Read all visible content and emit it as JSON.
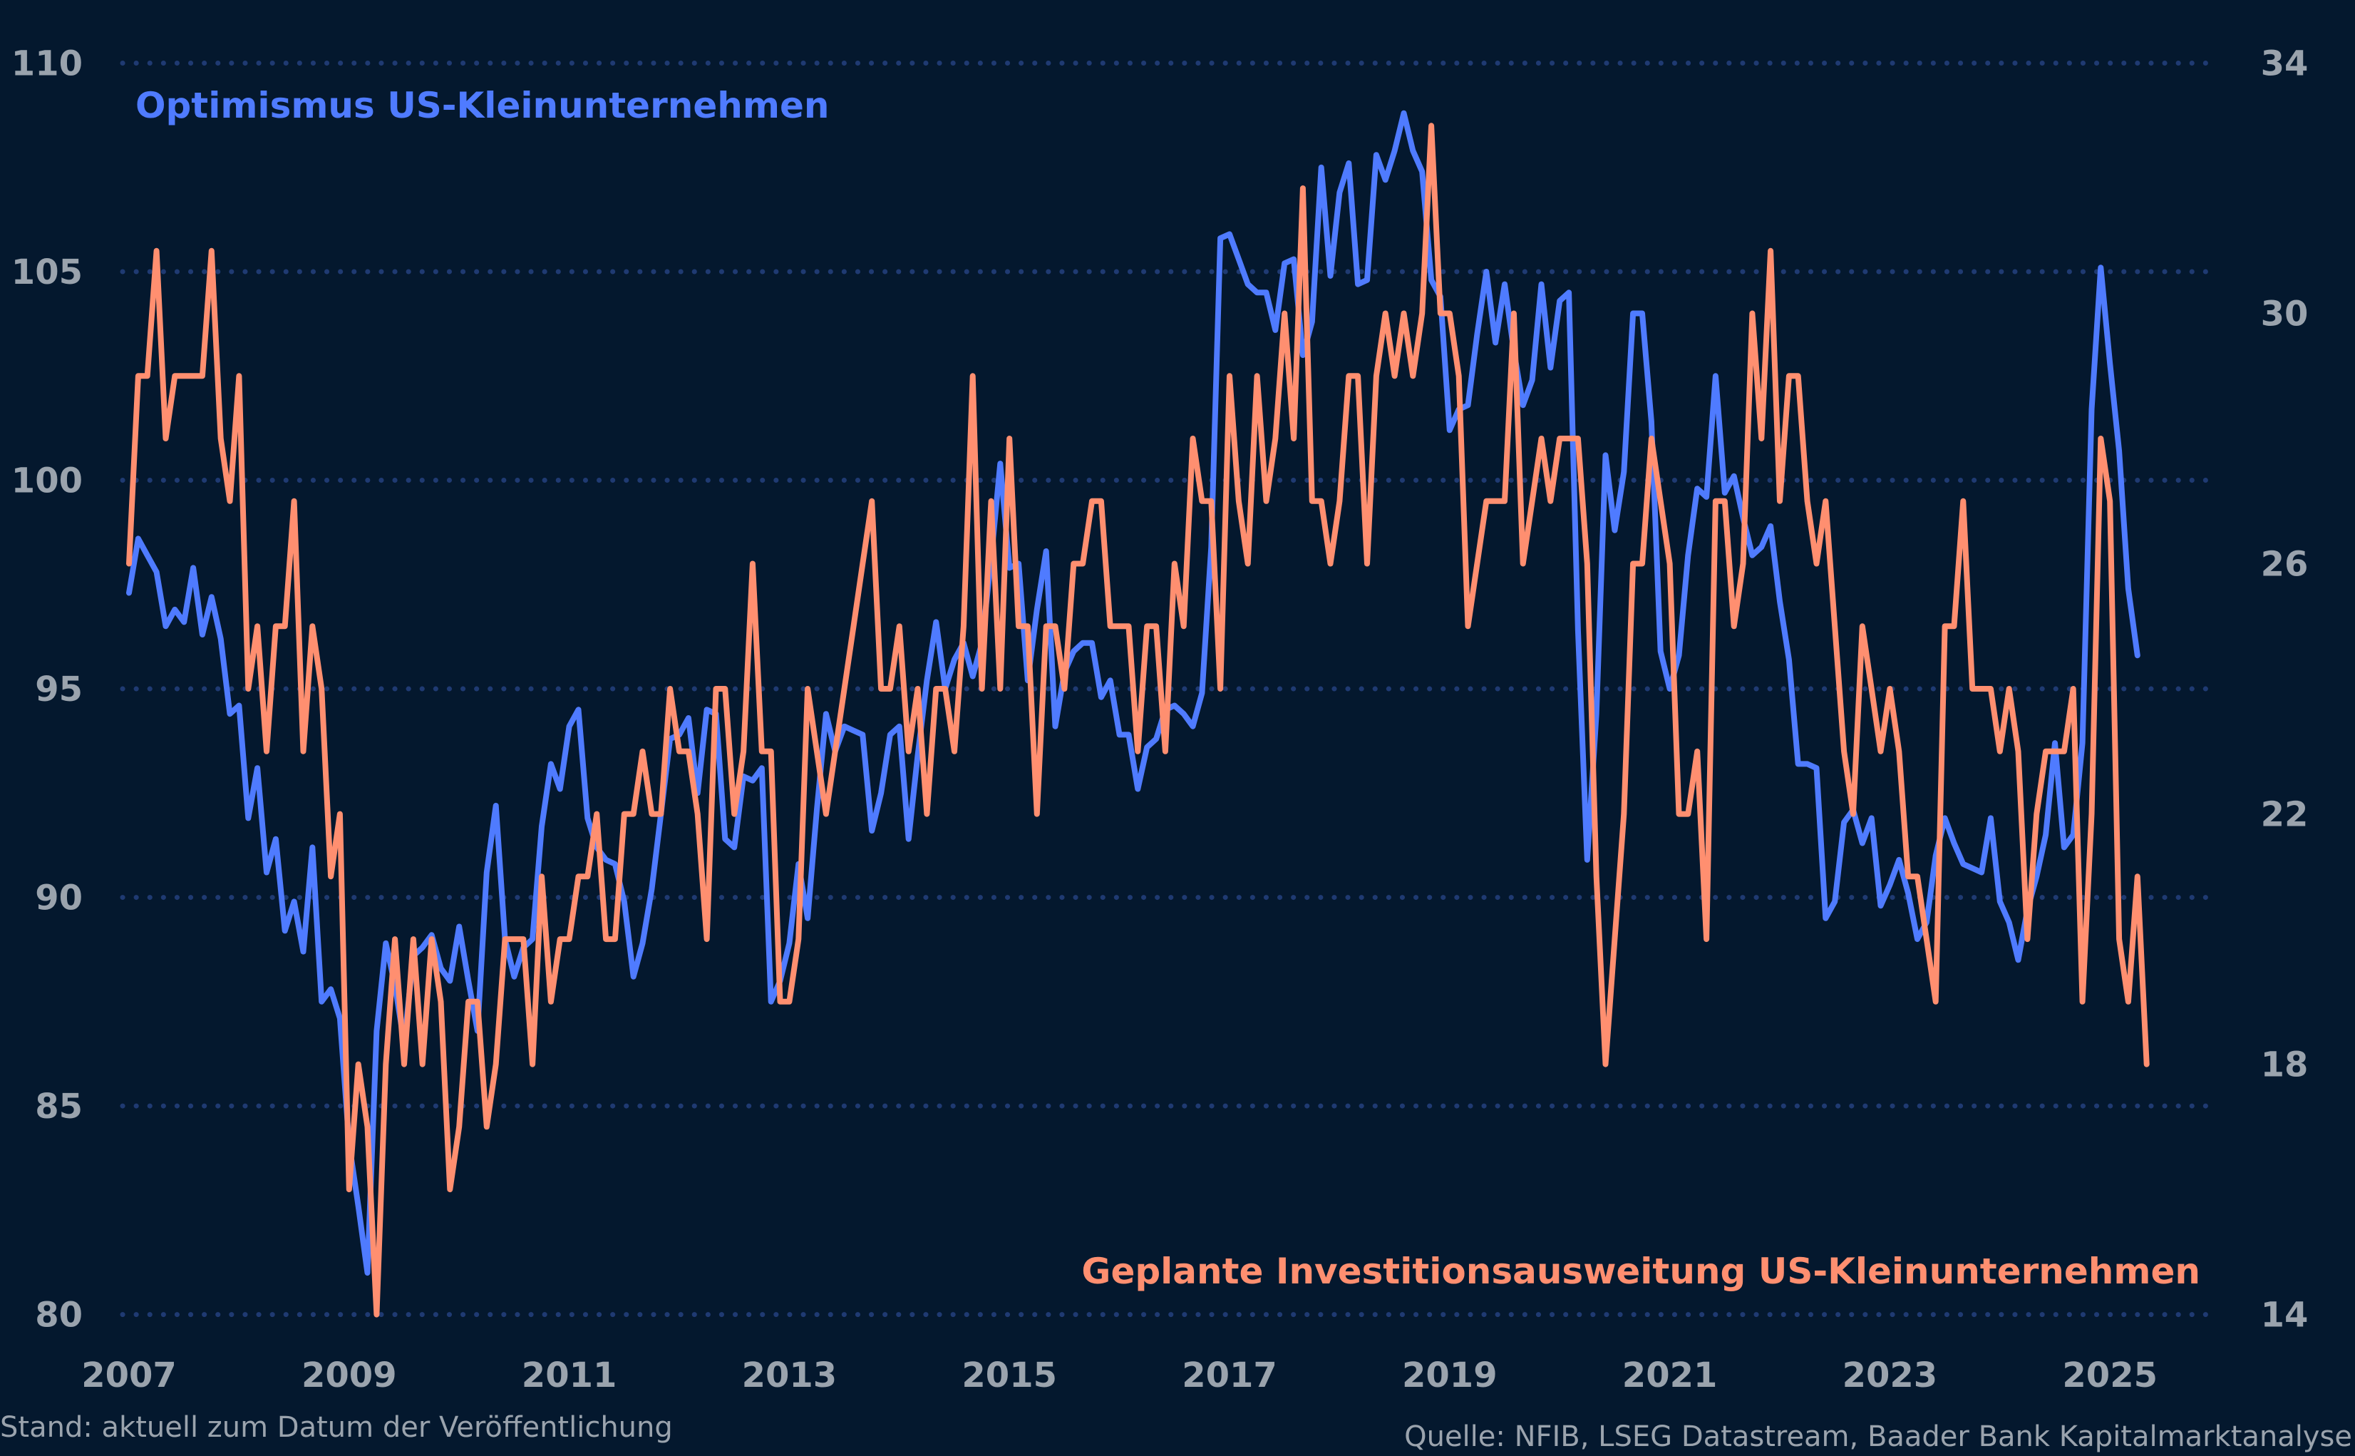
{
  "chart_data": {
    "type": "line",
    "title": "",
    "x_start": "2007-01",
    "x_frequency": "monthly",
    "x_ticks": [
      "2007",
      "2009",
      "2011",
      "2013",
      "2015",
      "2017",
      "2019",
      "2021",
      "2023",
      "2025"
    ],
    "y_left": {
      "range": [
        80,
        110
      ],
      "ticks": [
        "80",
        "85",
        "90",
        "95",
        "100",
        "105",
        "110"
      ]
    },
    "y_right": {
      "range": [
        14,
        34
      ],
      "ticks": [
        "14",
        "18",
        "22",
        "26",
        "30",
        "34"
      ]
    },
    "grid": "horizontal dotted",
    "series": [
      {
        "name": "Optimismus US-Kleinunternehmen",
        "axis": "left",
        "color": "#4f7bff",
        "values": [
          97.3,
          98.6,
          98.2,
          97.8,
          96.5,
          96.9,
          96.6,
          97.9,
          96.3,
          97.2,
          96.2,
          94.4,
          94.6,
          91.9,
          93.1,
          90.6,
          91.4,
          89.2,
          89.9,
          88.7,
          91.2,
          87.5,
          87.8,
          87.1,
          84.1,
          82.6,
          81.0,
          86.8,
          88.9,
          87.9,
          86.5,
          88.6,
          88.8,
          89.1,
          88.3,
          88.0,
          89.3,
          88.0,
          86.8,
          90.6,
          92.2,
          89.0,
          88.1,
          88.8,
          89.0,
          91.7,
          93.2,
          92.6,
          94.1,
          94.5,
          91.9,
          91.2,
          90.9,
          90.8,
          89.9,
          88.1,
          88.9,
          90.2,
          92.0,
          93.8,
          93.9,
          94.3,
          92.5,
          94.5,
          94.4,
          91.4,
          91.2,
          92.9,
          92.8,
          93.1,
          87.5,
          88.0,
          88.9,
          90.8,
          89.5,
          92.1,
          94.4,
          93.5,
          94.1,
          94.0,
          93.9,
          91.6,
          92.5,
          93.9,
          94.1,
          91.4,
          93.4,
          95.2,
          96.6,
          95.0,
          95.7,
          96.1,
          95.3,
          96.1,
          98.1,
          100.4,
          97.9,
          98.0,
          95.2,
          96.9,
          98.3,
          94.1,
          95.4,
          95.9,
          96.1,
          96.1,
          94.8,
          95.2,
          93.9,
          93.9,
          92.6,
          93.6,
          93.8,
          94.5,
          94.6,
          94.4,
          94.1,
          94.9,
          98.4,
          105.8,
          105.9,
          105.3,
          104.7,
          104.5,
          104.5,
          103.6,
          105.2,
          105.3,
          103.0,
          103.8,
          107.5,
          104.9,
          106.9,
          107.6,
          104.7,
          104.8,
          107.8,
          107.2,
          107.9,
          108.8,
          107.9,
          107.4,
          104.8,
          104.4,
          101.2,
          101.7,
          101.8,
          103.5,
          105.0,
          103.3,
          104.7,
          103.1,
          101.8,
          102.4,
          104.7,
          102.7,
          104.3,
          104.5,
          96.4,
          90.9,
          94.4,
          100.6,
          98.8,
          100.2,
          104.0,
          104.0,
          101.4,
          95.9,
          95.0,
          95.8,
          98.2,
          99.8,
          99.6,
          102.5,
          99.7,
          100.1,
          99.1,
          98.2,
          98.4,
          98.9,
          97.1,
          95.7,
          93.2,
          93.2,
          93.1,
          89.5,
          89.9,
          91.8,
          92.1,
          91.3,
          91.9,
          89.8,
          90.3,
          90.9,
          90.1,
          89.0,
          89.4,
          91.0,
          91.9,
          91.3,
          90.8,
          90.7,
          90.6,
          91.9,
          89.9,
          89.4,
          88.5,
          89.7,
          90.5,
          91.5,
          93.7,
          91.2,
          91.5,
          93.7,
          101.7,
          105.1,
          102.8,
          100.7,
          97.4,
          95.8
        ]
      },
      {
        "name": "Geplante Investitionsausweitung US-Kleinunternehmen",
        "axis": "right",
        "color": "#ff8f70",
        "values": [
          26,
          29,
          29,
          31,
          28,
          29,
          29,
          29,
          29,
          31,
          28,
          27,
          29,
          24,
          25,
          23,
          25,
          25,
          27,
          23,
          25,
          24,
          21,
          22,
          16,
          18,
          17,
          14,
          18,
          20,
          18,
          20,
          18,
          20,
          19,
          16,
          17,
          19,
          19,
          17,
          18,
          20,
          20,
          20,
          18,
          21,
          19,
          20,
          20,
          21,
          21,
          22,
          20,
          20,
          22,
          22,
          23,
          22,
          22,
          24,
          23,
          23,
          22,
          20,
          24,
          24,
          22,
          23,
          26,
          23,
          23,
          19,
          19,
          20,
          24,
          23,
          22,
          23,
          24,
          25,
          26,
          27,
          24,
          24,
          25,
          23,
          24,
          22,
          24,
          24,
          23,
          25,
          29,
          24,
          27,
          24,
          28,
          25,
          25,
          22,
          25,
          25,
          24,
          26,
          26,
          27,
          27,
          25,
          25,
          25,
          23,
          25,
          25,
          23,
          26,
          25,
          28,
          27,
          27,
          24,
          29,
          27,
          26,
          29,
          27,
          28,
          30,
          28,
          32,
          27,
          27,
          26,
          27,
          29,
          29,
          26,
          29,
          30,
          29,
          30,
          29,
          30,
          33,
          30,
          30,
          29,
          25,
          26,
          27,
          27,
          27,
          30,
          26,
          27,
          28,
          27,
          28,
          28,
          28,
          26,
          21,
          18,
          20,
          22,
          26,
          26,
          28,
          27,
          26,
          22,
          22,
          23,
          20,
          27,
          27,
          25,
          26,
          30,
          28,
          31,
          27,
          29,
          29,
          27,
          26,
          27,
          25,
          23,
          22,
          25,
          24,
          23,
          24,
          23,
          21,
          21,
          20,
          19,
          25,
          25,
          27,
          24,
          24,
          24,
          23,
          24,
          23,
          20,
          22,
          23,
          23,
          23,
          24,
          19,
          22,
          28,
          27,
          20,
          19,
          21,
          18
        ]
      }
    ]
  },
  "legend": {
    "blue_label": "Optimismus US-Kleinunternehmen",
    "orange_label": "Geplante Investitionsausweitung US-Kleinunternehmen"
  },
  "footer": {
    "left": "Stand: aktuell zum Datum der Veröffentlichung",
    "right": "Quelle: NFIB, LSEG Datastream, Baader Bank Kapitalmarktanalyse"
  },
  "colors": {
    "background": "#04182e",
    "grid": "#1f3a72",
    "tick_text": "#9aa3ad"
  }
}
